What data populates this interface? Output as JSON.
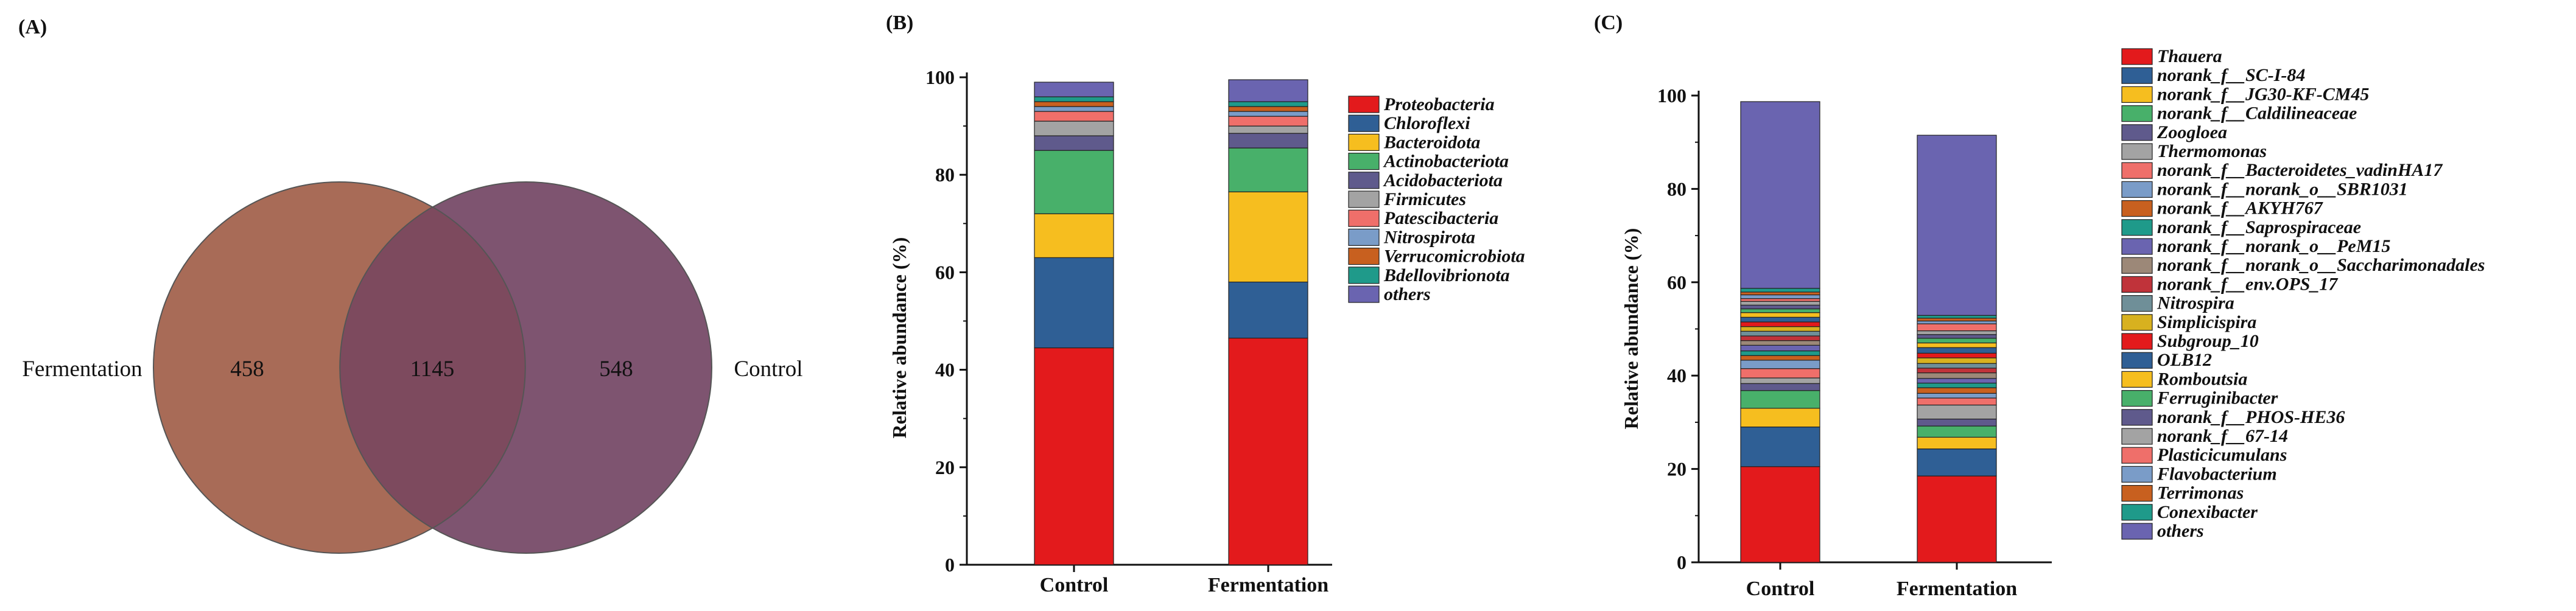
{
  "panel_labels": {
    "a": "(A)",
    "b": "(B)",
    "c": "(C)"
  },
  "chart_data": [
    {
      "type": "venn",
      "sets": [
        {
          "name": "Fermentation",
          "unique": 458,
          "color": "#a86b57"
        },
        {
          "name": "Control",
          "unique": 548,
          "color": "#7e5470"
        }
      ],
      "shared": 1145,
      "shared_color": "#7d4a5e"
    },
    {
      "type": "bar",
      "stacked": true,
      "categories": [
        "Control",
        "Fermentation"
      ],
      "ylabel": "Relative abundance (%)",
      "ylim": [
        0,
        100
      ],
      "yticks": [
        0,
        20,
        40,
        60,
        80,
        100
      ],
      "legend_position": "right",
      "series": [
        {
          "name": "Proteobacteria",
          "color": "#e31a1c",
          "values": [
            44.5,
            46.5
          ]
        },
        {
          "name": "Chloroflexi",
          "color": "#2f5f95",
          "values": [
            18.5,
            11.5
          ]
        },
        {
          "name": "Bacteroidota",
          "color": "#f6be1f",
          "values": [
            9.0,
            18.5
          ]
        },
        {
          "name": "Actinobacteriota",
          "color": "#48b06a",
          "values": [
            13.0,
            9.0
          ]
        },
        {
          "name": "Acidobacteriota",
          "color": "#5f5a8c",
          "values": [
            3.0,
            3.0
          ]
        },
        {
          "name": "Firmicutes",
          "color": "#a3a3a3",
          "values": [
            3.0,
            1.5
          ]
        },
        {
          "name": "Patescibacteria",
          "color": "#ef6f6a",
          "values": [
            2.0,
            2.0
          ]
        },
        {
          "name": "Nitrospirota",
          "color": "#7a9cc8",
          "values": [
            1.0,
            1.0
          ]
        },
        {
          "name": "Verrucomicrobiota",
          "color": "#c8601f",
          "values": [
            1.0,
            1.0
          ]
        },
        {
          "name": "Bdellovibrionota",
          "color": "#1f9a8a",
          "values": [
            1.0,
            1.0
          ]
        },
        {
          "name": "others",
          "color": "#6a64b0",
          "values": [
            3.0,
            4.5
          ]
        }
      ]
    },
    {
      "type": "bar",
      "stacked": true,
      "categories": [
        "Control",
        "Fermentation"
      ],
      "ylabel": "Relative abundance (%)",
      "ylim": [
        0,
        100
      ],
      "yticks": [
        0,
        20,
        40,
        60,
        80,
        100
      ],
      "legend_position": "right",
      "series": [
        {
          "name": "Thauera",
          "color": "#e31a1c",
          "values": [
            20.5,
            18.5
          ]
        },
        {
          "name": "norank_f__SC-I-84",
          "color": "#2f5f95",
          "values": [
            8.5,
            5.8
          ]
        },
        {
          "name": "norank_f__JG30-KF-CM45",
          "color": "#f6be1f",
          "values": [
            4.0,
            2.5
          ]
        },
        {
          "name": "norank_f__Caldilineaceae",
          "color": "#48b06a",
          "values": [
            3.8,
            2.4
          ]
        },
        {
          "name": "Zoogloea",
          "color": "#5f5a8c",
          "values": [
            1.5,
            1.5
          ]
        },
        {
          "name": "Thermomonas",
          "color": "#a3a3a3",
          "values": [
            1.2,
            3.0
          ]
        },
        {
          "name": "norank_f__Bacteroidetes_vadinHA17",
          "color": "#ef6f6a",
          "values": [
            2.0,
            1.5
          ]
        },
        {
          "name": "norank_f__norank_o__SBR1031",
          "color": "#7a9cc8",
          "values": [
            1.8,
            1.0
          ]
        },
        {
          "name": "norank_f__AKYH767",
          "color": "#c8601f",
          "values": [
            1.0,
            1.2
          ]
        },
        {
          "name": "norank_f__Saprospiraceae",
          "color": "#1f9a8a",
          "values": [
            1.0,
            1.0
          ]
        },
        {
          "name": "norank_f__norank_o__PeM15",
          "color": "#6a64b0",
          "values": [
            1.2,
            1.0
          ]
        },
        {
          "name": "norank_f__norank_o__Saccharimonadales",
          "color": "#9c8878",
          "values": [
            1.0,
            1.2
          ]
        },
        {
          "name": "norank_f__env.OPS_17",
          "color": "#c0333a",
          "values": [
            1.0,
            1.0
          ]
        },
        {
          "name": "Nitrospira",
          "color": "#6f8f98",
          "values": [
            1.0,
            1.0
          ]
        },
        {
          "name": "Simplicispira",
          "color": "#d8b11f",
          "values": [
            1.0,
            1.2
          ]
        },
        {
          "name": "Subgroup_10",
          "color": "#e31a1c",
          "values": [
            1.0,
            1.0
          ]
        },
        {
          "name": "OLB12",
          "color": "#2f5f95",
          "values": [
            1.0,
            1.2
          ]
        },
        {
          "name": "Romboutsia",
          "color": "#f6be1f",
          "values": [
            1.0,
            1.0
          ]
        },
        {
          "name": "Ferruginibacter",
          "color": "#48b06a",
          "values": [
            0.8,
            1.0
          ]
        },
        {
          "name": "norank_f__PHOS-HE36",
          "color": "#5f5a8c",
          "values": [
            0.8,
            0.8
          ]
        },
        {
          "name": "norank_f__67-14",
          "color": "#a3a3a3",
          "values": [
            0.8,
            0.8
          ]
        },
        {
          "name": "Plasticicumulans",
          "color": "#ef6f6a",
          "values": [
            0.6,
            1.5
          ]
        },
        {
          "name": "Flavobacterium",
          "color": "#7a9cc8",
          "values": [
            0.8,
            0.6
          ]
        },
        {
          "name": "Terrimonas",
          "color": "#c8601f",
          "values": [
            0.6,
            0.6
          ]
        },
        {
          "name": "Conexibacter",
          "color": "#1f9a8a",
          "values": [
            0.8,
            0.6
          ]
        },
        {
          "name": "others",
          "color": "#6a64b0",
          "values": [
            40.0,
            38.6
          ]
        }
      ]
    }
  ]
}
